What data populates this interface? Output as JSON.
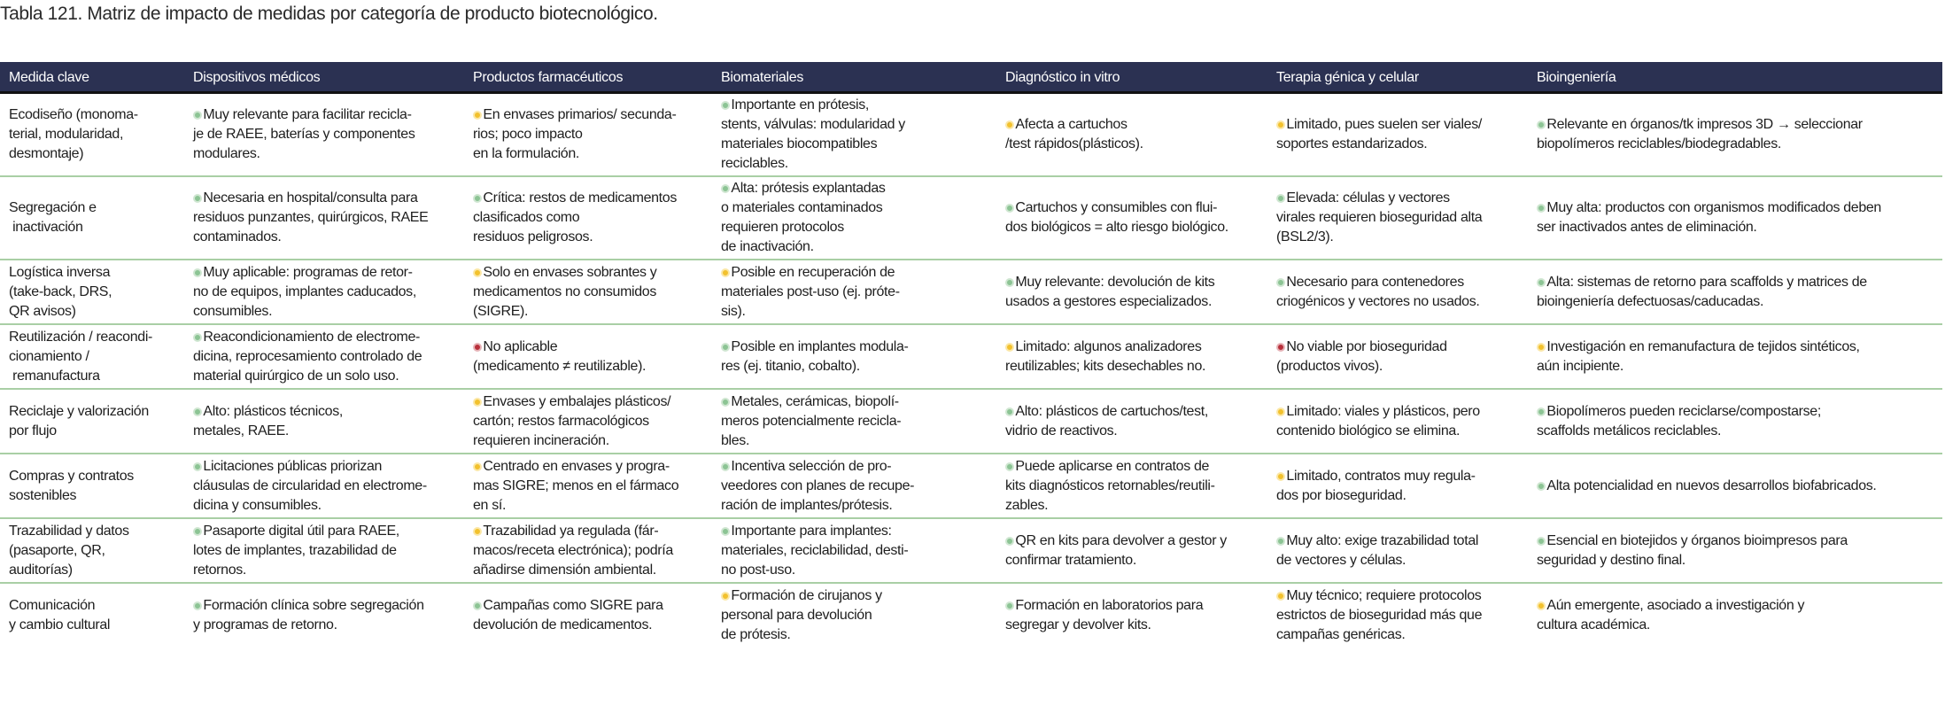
{
  "title": "Tabla 121. Matriz de impacto de medidas por categoría de producto biotecnológico.",
  "status_colors": {
    "green": "#8cc494",
    "yellow": "#f2c12e",
    "red": "#b8303b"
  },
  "header_color": "#2b3152",
  "columns": [
    "Medida clave",
    "Dispositivos médicos",
    "Productos farmacéuticos",
    "Biomateriales",
    "Diagnóstico in vitro",
    "Terapia génica y celular",
    "Bioingeniería"
  ],
  "rows": [
    {
      "measure": "Ecodiseño (monoma-\nterial, modularidad,\ndesmontaje)",
      "cells": [
        {
          "status": "green",
          "text": "Muy relevante para facilitar recicla-\nje de RAEE, baterías y componentes\nmodulares."
        },
        {
          "status": "yellow",
          "text": "En envases primarios/ secunda-\nrios; poco impacto\nen la formulación."
        },
        {
          "status": "green",
          "text": "Importante en prótesis,\nstents, válvulas: modularidad y\nmateriales biocompatibles\nreciclables."
        },
        {
          "status": "yellow",
          "text": "Afecta a cartuchos\n/test rápidos(plásticos)."
        },
        {
          "status": "yellow",
          "text": "Limitado, pues suelen ser viales/\nsoportes estandarizados."
        },
        {
          "status": "green",
          "text": "Relevante en órganos/tk impresos 3D → seleccionar\nbiopolímeros reciclables/biodegradables."
        }
      ]
    },
    {
      "measure": "Segregación e\n inactivación",
      "cells": [
        {
          "status": "green",
          "text": "Necesaria en hospital/consulta para\nresiduos punzantes, quirúrgicos, RAEE\ncontaminados."
        },
        {
          "status": "green",
          "text": "Crítica: restos de medicamentos\nclasificados como\nresiduos peligrosos."
        },
        {
          "status": "green",
          "text": "Alta: prótesis explantadas\no materiales contaminados\nrequieren protocolos\nde inactivación."
        },
        {
          "status": "green",
          "text": "Cartuchos y consumibles con flui-\ndos biológicos = alto riesgo biológico."
        },
        {
          "status": "green",
          "text": "Elevada: células y vectores\nvirales requieren bioseguridad alta\n(BSL2/3)."
        },
        {
          "status": "green",
          "text": "Muy alta: productos con organismos modificados deben\nser inactivados antes de eliminación."
        }
      ]
    },
    {
      "measure": "Logística inversa\n(take-back, DRS,\nQR avisos)",
      "cells": [
        {
          "status": "green",
          "text": "Muy aplicable: programas de retor-\nno de equipos, implantes caducados,\nconsumibles."
        },
        {
          "status": "yellow",
          "text": "Solo en envases sobrantes y\nmedicamentos no consumidos\n(SIGRE)."
        },
        {
          "status": "yellow",
          "text": "Posible en recuperación de\nmateriales post-uso (ej. próte-\nsis)."
        },
        {
          "status": "green",
          "text": "Muy relevante: devolución de kits\nusados a gestores especializados."
        },
        {
          "status": "green",
          "text": "Necesario para contenedores\ncriogénicos y vectores no usados."
        },
        {
          "status": "green",
          "text": "Alta: sistemas de retorno para scaffolds y matrices de\nbioingeniería defectuosas/caducadas."
        }
      ]
    },
    {
      "measure": "Reutilización / reacondi-\ncionamiento /\n remanufactura",
      "cells": [
        {
          "status": "green",
          "text": "Reacondicionamiento de electrome-\ndicina, reprocesamiento controlado de\nmaterial quirúrgico de un solo uso."
        },
        {
          "status": "red",
          "text": "No aplicable\n(medicamento ≠ reutilizable)."
        },
        {
          "status": "green",
          "text": "Posible en implantes modula-\nres (ej. titanio, cobalto)."
        },
        {
          "status": "yellow",
          "text": "Limitado: algunos analizadores\nreutilizables; kits desechables no."
        },
        {
          "status": "red",
          "text": "No viable por bioseguridad\n(productos vivos)."
        },
        {
          "status": "yellow",
          "text": "Investigación en remanufactura de tejidos sintéticos,\naún incipiente."
        }
      ]
    },
    {
      "measure": "Reciclaje y valorización\npor flujo",
      "cells": [
        {
          "status": "green",
          "text": "Alto: plásticos técnicos,\nmetales, RAEE."
        },
        {
          "status": "yellow",
          "text": "Envases y embalajes plásticos/\ncartón; restos farmacológicos\nrequieren incineración."
        },
        {
          "status": "green",
          "text": "Metales, cerámicas, biopolí-\nmeros potencialmente recicla-\nbles."
        },
        {
          "status": "green",
          "text": "Alto: plásticos de cartuchos/test,\nvidrio de reactivos."
        },
        {
          "status": "yellow",
          "text": "Limitado: viales y plásticos, pero\ncontenido biológico se elimina."
        },
        {
          "status": "green",
          "text": "Biopolímeros pueden reciclarse/compostarse;\nscaffolds metálicos reciclables."
        }
      ]
    },
    {
      "measure": "Compras y contratos\nsostenibles",
      "cells": [
        {
          "status": "green",
          "text": "Licitaciones públicas priorizan\ncláusulas de circularidad en electrome-\ndicina y consumibles."
        },
        {
          "status": "yellow",
          "text": "Centrado en envases y progra-\nmas SIGRE; menos en el fármaco\nen sí."
        },
        {
          "status": "green",
          "text": "Incentiva selección de pro-\nveedores con planes de recupe-\nración de implantes/prótesis."
        },
        {
          "status": "green",
          "text": "Puede aplicarse en contratos de\nkits diagnósticos retornables/reutili-\nzables."
        },
        {
          "status": "yellow",
          "text": "Limitado, contratos muy regula-\ndos por bioseguridad."
        },
        {
          "status": "green",
          "text": "Alta potencialidad en nuevos desarrollos biofabricados."
        }
      ]
    },
    {
      "measure": "Trazabilidad y datos\n(pasaporte, QR,\nauditorías)",
      "cells": [
        {
          "status": "green",
          "text": "Pasaporte digital útil para RAEE,\nlotes de implantes, trazabilidad de\nretornos."
        },
        {
          "status": "yellow",
          "text": "Trazabilidad ya regulada (fár-\nmacos/receta electrónica); podría\nañadirse dimensión ambiental."
        },
        {
          "status": "green",
          "text": "Importante para implantes:\nmateriales, reciclabilidad, desti-\nno post-uso."
        },
        {
          "status": "green",
          "text": "QR en kits para devolver a gestor y\nconfirmar tratamiento."
        },
        {
          "status": "green",
          "text": "Muy alto: exige trazabilidad total\nde vectores y células."
        },
        {
          "status": "green",
          "text": "Esencial en biotejidos y órganos bioimpresos para\nseguridad y destino final."
        }
      ]
    },
    {
      "measure": "Comunicación\ny cambio cultural",
      "cells": [
        {
          "status": "green",
          "text": "Formación clínica sobre segregación\ny programas de retorno."
        },
        {
          "status": "green",
          "text": "Campañas como SIGRE para\ndevolución de medicamentos."
        },
        {
          "status": "yellow",
          "text": "Formación de cirujanos y\npersonal para devolución\nde prótesis."
        },
        {
          "status": "green",
          "text": "Formación en laboratorios para\nsegregar y devolver kits."
        },
        {
          "status": "yellow",
          "text": "Muy técnico; requiere protocolos\nestrictos de bioseguridad más que\ncampañas genéricas."
        },
        {
          "status": "yellow",
          "text": "Aún emergente, asociado a investigación y\ncultura académica."
        }
      ]
    }
  ]
}
